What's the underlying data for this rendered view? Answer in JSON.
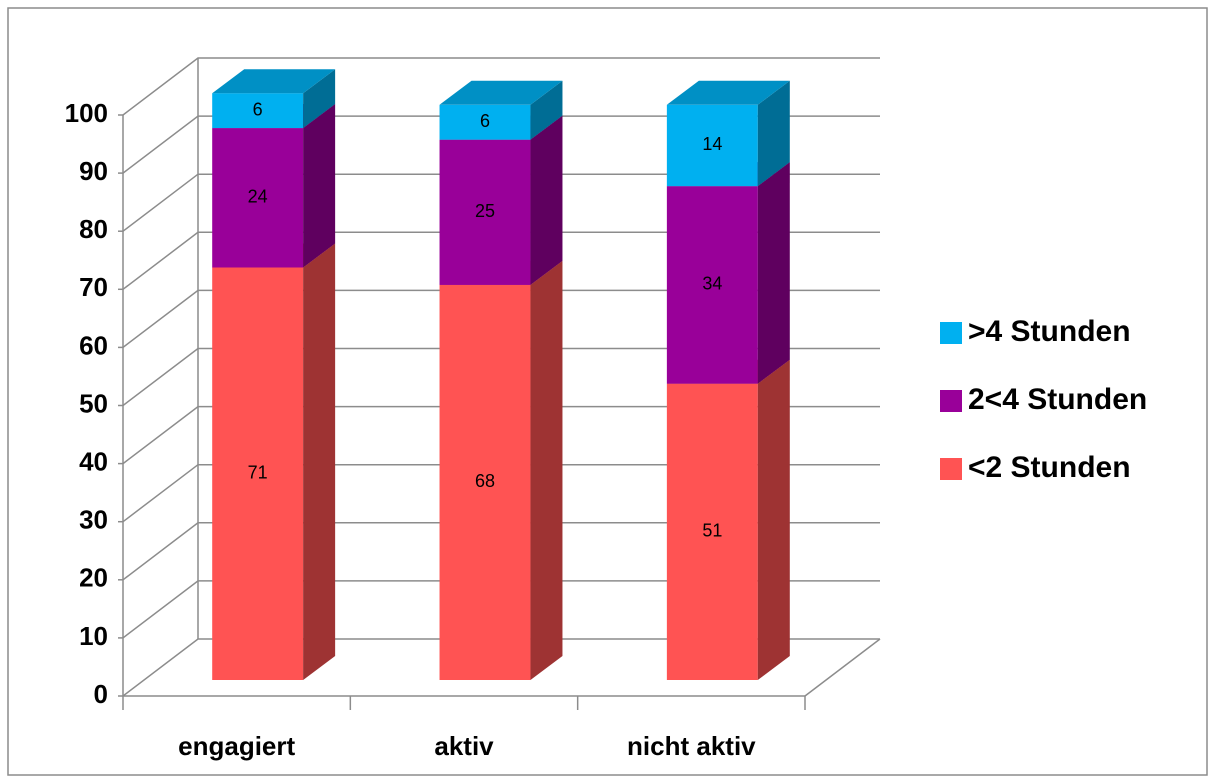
{
  "chart_data": {
    "type": "bar3d_stacked",
    "categories": [
      "engagiert",
      "aktiv",
      "nicht aktiv"
    ],
    "series": [
      {
        "name": "<2 Stunden",
        "color": "#ff5353",
        "values": [
          71,
          68,
          51
        ]
      },
      {
        "name": "2<4 Stunden",
        "color": "#990099",
        "values": [
          24,
          25,
          34
        ]
      },
      {
        "name": ">4 Stunden",
        "color": "#00b0f0",
        "values": [
          6,
          6,
          14
        ]
      }
    ],
    "ylim": [
      0,
      100
    ],
    "yticks": [
      0,
      10,
      20,
      30,
      40,
      50,
      60,
      70,
      80,
      90,
      100
    ],
    "grid": true,
    "legend": "right"
  }
}
